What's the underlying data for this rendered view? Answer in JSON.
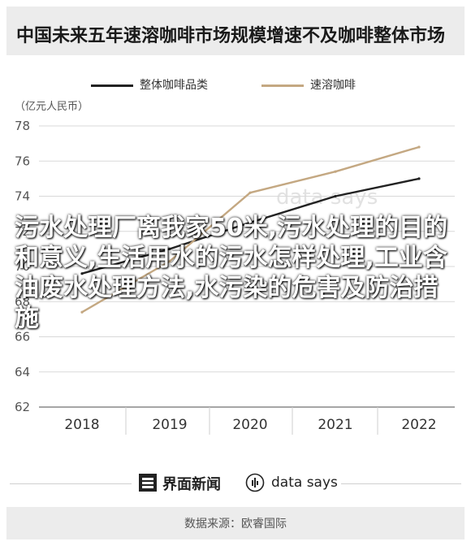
{
  "header": {
    "title": "中国未来五年速溶咖啡市场规模增速不及咖啡整体市场"
  },
  "legend": {
    "items": [
      {
        "label": "整体咖啡品类",
        "color": "#222222"
      },
      {
        "label": "速溶咖啡",
        "color": "#c4a882"
      }
    ]
  },
  "chart_data": {
    "type": "line",
    "ylabel": "（亿元人民币）",
    "x": [
      "2018",
      "2019",
      "2020",
      "2021",
      "2022"
    ],
    "ylim": [
      62,
      78
    ],
    "yticks": [
      62,
      64,
      66,
      68,
      70,
      72,
      74,
      76,
      78
    ],
    "grid": true,
    "series": [
      {
        "name": "整体咖啡品类",
        "color": "#222222",
        "values": [
          69.6,
          71.0,
          72.5,
          74.0,
          75.0
        ]
      },
      {
        "name": "速溶咖啡",
        "color": "#c4a882",
        "values": [
          67.4,
          70.3,
          74.2,
          75.4,
          76.8
        ]
      }
    ]
  },
  "overlay": {
    "text": "污水处理厂离我家50米,污水处理的目的和意义,生活用水的污水怎样处理,工业含油废水处理方法,水污染的危害及防治措施"
  },
  "watermark": {
    "text": "data says"
  },
  "footer": {
    "brand1": "界面新闻",
    "brand2": "data says"
  },
  "source": {
    "text": "数据来源：欧睿国际"
  }
}
